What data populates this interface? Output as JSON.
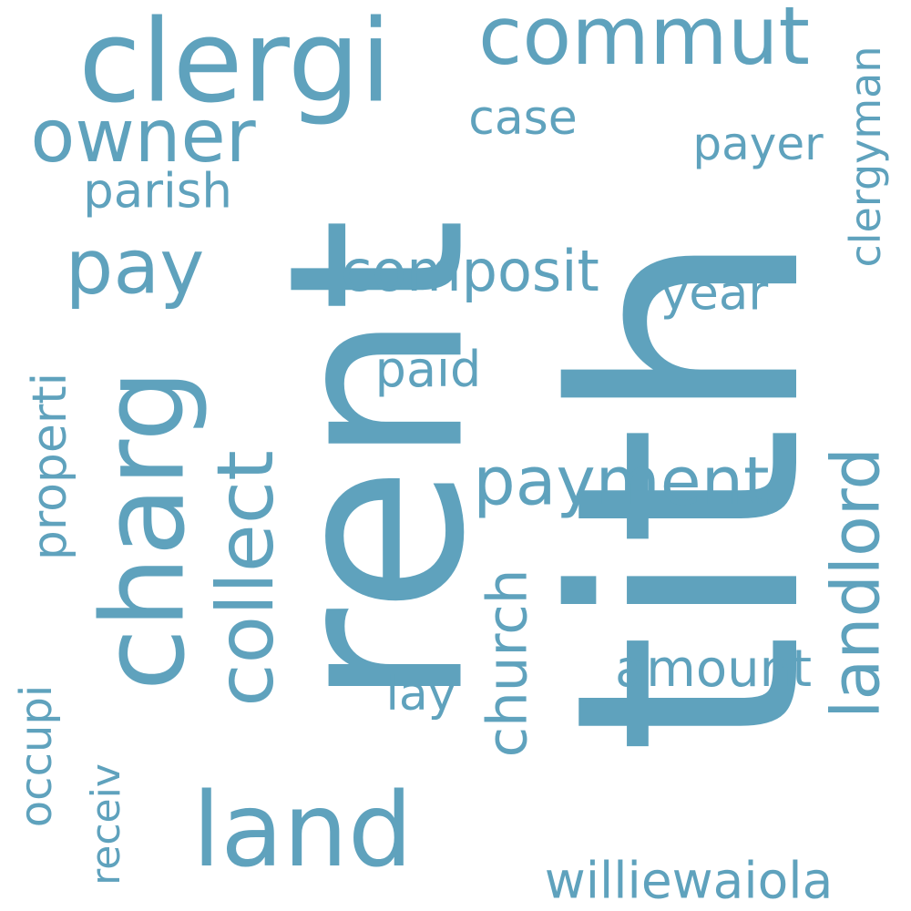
{
  "word_cloud": {
    "color": "#5fa2bd",
    "words": [
      "tith",
      "rent",
      "clergi",
      "commut",
      "owner",
      "case",
      "payer",
      "clergyman",
      "parish",
      "pay",
      "composit",
      "year",
      "properti",
      "charg",
      "collect",
      "paid",
      "payment",
      "landlord",
      "church",
      "amount",
      "lay",
      "occupi",
      "receiv",
      "land",
      "williewaiola"
    ]
  }
}
